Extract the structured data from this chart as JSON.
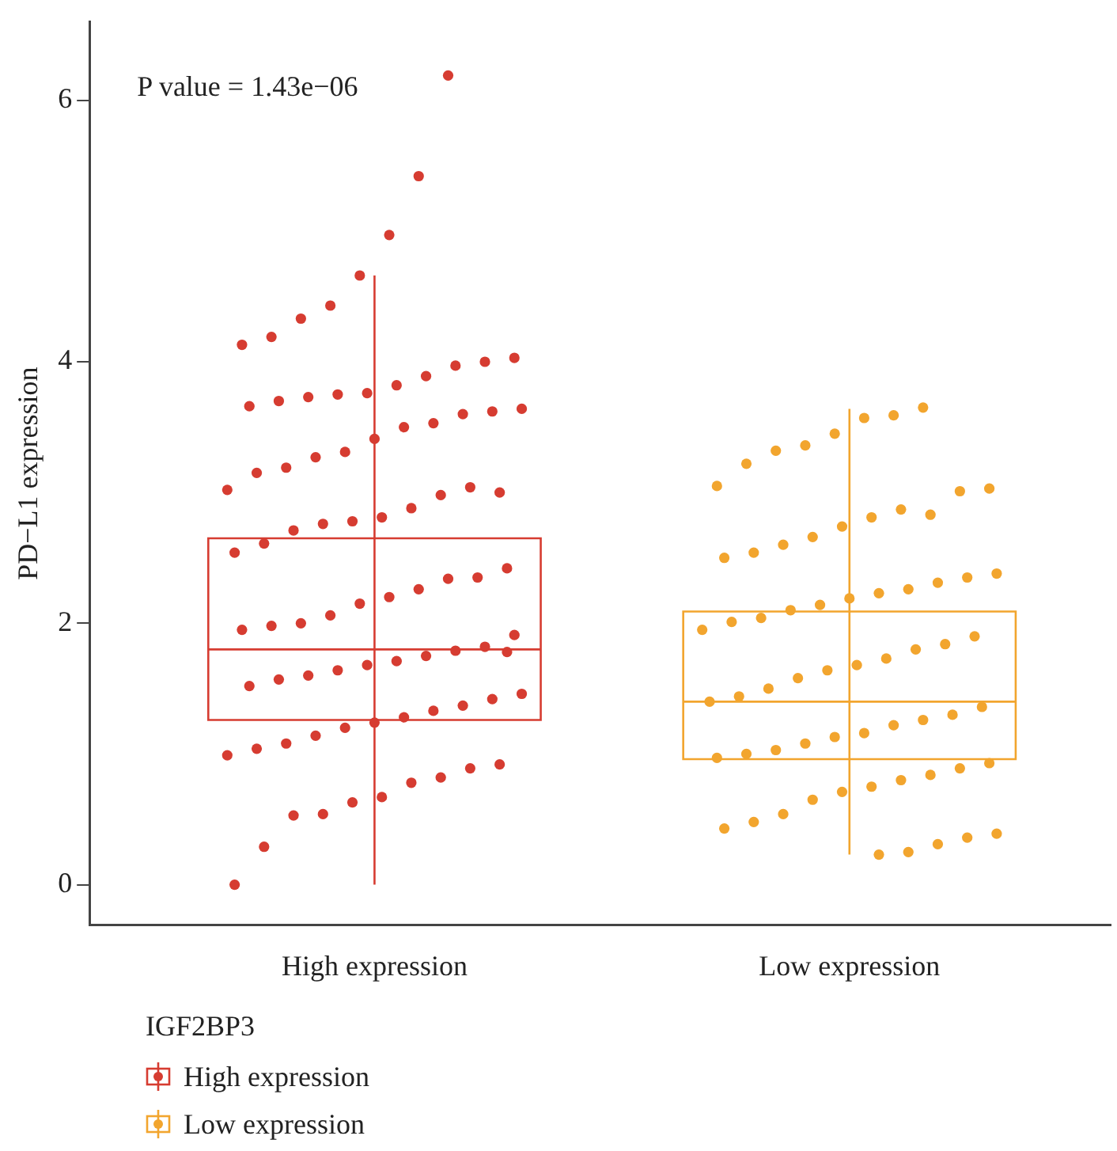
{
  "chart_data": {
    "type": "box",
    "ylabel": "PD−L1 expression",
    "legend_title": "IGF2BP3",
    "legend": "bottom left",
    "grid": false,
    "marker": "circle",
    "annotations": [
      "P value = 1.43e−06"
    ],
    "categories": [
      "High expression",
      "Low expression"
    ],
    "ylim": [
      -0.31,
      6.6
    ],
    "yticks": [
      0,
      2,
      4,
      6
    ],
    "colors": [
      "#d63c31",
      "#f2a52e"
    ],
    "boxes": [
      {
        "low": 0.0,
        "q1": 1.26,
        "median": 1.8,
        "q3": 2.65,
        "high": 4.66
      },
      {
        "low": 0.23,
        "q1": 0.96,
        "median": 1.4,
        "q3": 2.09,
        "high": 3.64
      }
    ],
    "series": [
      {
        "name": "High expression",
        "type": "scatter",
        "color": "#d63c31",
        "x": [
          "High expression",
          "High expression",
          "High expression",
          "High expression",
          "High expression",
          "High expression",
          "High expression",
          "High expression",
          "High expression",
          "High expression",
          "High expression",
          "High expression",
          "High expression",
          "High expression",
          "High expression",
          "High expression",
          "High expression",
          "High expression",
          "High expression",
          "High expression",
          "High expression",
          "High expression",
          "High expression",
          "High expression",
          "High expression",
          "High expression",
          "High expression",
          "High expression",
          "High expression",
          "High expression",
          "High expression",
          "High expression",
          "High expression",
          "High expression",
          "High expression",
          "High expression",
          "High expression",
          "High expression",
          "High expression",
          "High expression",
          "High expression",
          "High expression",
          "High expression",
          "High expression",
          "High expression",
          "High expression",
          "High expression",
          "High expression",
          "High expression",
          "High expression",
          "High expression",
          "High expression",
          "High expression",
          "High expression",
          "High expression",
          "High expression",
          "High expression",
          "High expression",
          "High expression",
          "High expression",
          "High expression",
          "High expression",
          "High expression",
          "High expression",
          "High expression",
          "High expression",
          "High expression",
          "High expression",
          "High expression",
          "High expression",
          "High expression",
          "High expression",
          "High expression",
          "High expression",
          "High expression",
          "High expression",
          "High expression",
          "High expression",
          "High expression",
          "High expression",
          "High expression"
        ],
        "values": [
          6.19,
          5.42,
          4.97,
          4.66,
          4.43,
          4.33,
          4.19,
          4.13,
          4.03,
          4.0,
          3.97,
          3.89,
          3.82,
          3.76,
          3.75,
          3.73,
          3.7,
          3.66,
          3.64,
          3.62,
          3.6,
          3.53,
          3.5,
          3.41,
          3.31,
          3.27,
          3.19,
          3.15,
          3.02,
          3.0,
          3.04,
          2.98,
          2.88,
          2.81,
          2.78,
          2.76,
          2.71,
          2.61,
          2.54,
          2.42,
          2.35,
          2.34,
          2.26,
          2.2,
          2.15,
          2.06,
          2.0,
          1.98,
          1.95,
          1.91,
          1.82,
          1.79,
          1.75,
          1.71,
          1.68,
          1.64,
          1.6,
          1.57,
          1.52,
          1.46,
          1.42,
          1.37,
          1.33,
          1.28,
          1.24,
          1.2,
          1.14,
          1.08,
          1.04,
          0.99,
          0.92,
          0.89,
          0.82,
          0.78,
          0.67,
          0.63,
          0.54,
          0.53,
          0.29,
          0.0,
          1.78
        ]
      },
      {
        "name": "Low expression",
        "type": "scatter",
        "color": "#f2a52e",
        "x": [
          "Low expression",
          "Low expression",
          "Low expression",
          "Low expression",
          "Low expression",
          "Low expression",
          "Low expression",
          "Low expression",
          "Low expression",
          "Low expression",
          "Low expression",
          "Low expression",
          "Low expression",
          "Low expression",
          "Low expression",
          "Low expression",
          "Low expression",
          "Low expression",
          "Low expression",
          "Low expression",
          "Low expression",
          "Low expression",
          "Low expression",
          "Low expression",
          "Low expression",
          "Low expression",
          "Low expression",
          "Low expression",
          "Low expression",
          "Low expression",
          "Low expression",
          "Low expression",
          "Low expression",
          "Low expression",
          "Low expression",
          "Low expression",
          "Low expression",
          "Low expression",
          "Low expression",
          "Low expression",
          "Low expression",
          "Low expression",
          "Low expression",
          "Low expression",
          "Low expression",
          "Low expression",
          "Low expression",
          "Low expression",
          "Low expression",
          "Low expression",
          "Low expression",
          "Low expression",
          "Low expression",
          "Low expression",
          "Low expression",
          "Low expression",
          "Low expression",
          "Low expression",
          "Low expression",
          "Low expression",
          "Low expression",
          "Low expression",
          "Low expression",
          "Low expression"
        ],
        "values": [
          3.65,
          3.59,
          3.57,
          3.45,
          3.36,
          3.32,
          3.22,
          3.05,
          3.03,
          3.01,
          2.83,
          2.87,
          2.81,
          2.74,
          2.66,
          2.6,
          2.54,
          2.5,
          2.38,
          2.35,
          2.31,
          2.26,
          2.23,
          2.19,
          2.14,
          2.1,
          2.04,
          2.01,
          1.95,
          1.9,
          1.84,
          1.8,
          1.73,
          1.68,
          1.64,
          1.58,
          1.5,
          1.44,
          1.4,
          1.36,
          1.3,
          1.26,
          1.22,
          1.16,
          1.13,
          1.08,
          1.03,
          1.0,
          0.97,
          0.93,
          0.89,
          0.84,
          0.8,
          0.75,
          0.71,
          0.65,
          0.54,
          0.48,
          0.43,
          0.39,
          0.36,
          0.31,
          0.25,
          0.23
        ]
      }
    ]
  }
}
